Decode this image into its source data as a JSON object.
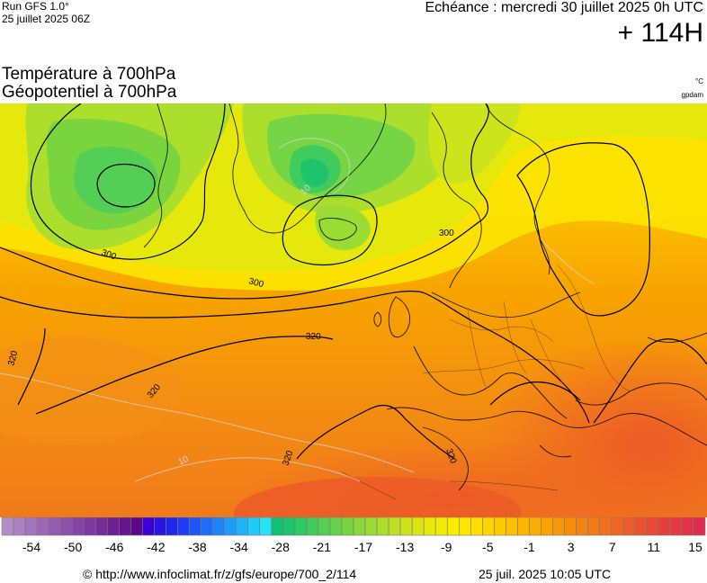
{
  "header": {
    "run_label": "Run GFS 1.0°",
    "run_date": "25 juillet 2025 06Z",
    "echeance": "Echéance : mercredi 30 juillet 2025 0h UTC",
    "lead_time": "+ 114H"
  },
  "titles": {
    "line1": "Température à 700hPa",
    "line2": "Géopotentiel à 700hPa",
    "unit_temp": "°C",
    "unit_geo": "gpdam"
  },
  "map": {
    "contour_labels": [
      {
        "id": "c300a",
        "text": "300"
      },
      {
        "id": "c300b",
        "text": "300"
      },
      {
        "id": "c300c",
        "text": "300"
      },
      {
        "id": "c320a",
        "text": "320"
      },
      {
        "id": "c320b",
        "text": "320"
      },
      {
        "id": "c320c",
        "text": "320"
      },
      {
        "id": "c320d",
        "text": "320"
      },
      {
        "id": "c320e",
        "text": "320"
      }
    ],
    "isotherm_labels": [
      {
        "id": "t10a",
        "text": "10"
      },
      {
        "id": "t10b",
        "text": "10"
      }
    ]
  },
  "legend": {
    "colors": [
      "#b48cc8",
      "#ac80c2",
      "#a474bc",
      "#9c68b6",
      "#945cb0",
      "#8c50aa",
      "#8444a4",
      "#7c389e",
      "#742c98",
      "#6c2092",
      "#64148c",
      "#5c0886",
      "#3a00d8",
      "#2a14e4",
      "#1e28ec",
      "#1e3cf4",
      "#1e54f8",
      "#1e6cfa",
      "#1e84fc",
      "#1e9cfc",
      "#1eb4fc",
      "#1ecbfc",
      "#28e2fa",
      "#10c074",
      "#1ec46c",
      "#2ec864",
      "#40cc5c",
      "#52cf54",
      "#64d24c",
      "#76d544",
      "#88d83c",
      "#9adb34",
      "#acde2c",
      "#bee024",
      "#cce41c",
      "#dae614",
      "#e6e80c",
      "#f0ea04",
      "#f8ec00",
      "#fce600",
      "#fcde00",
      "#fcd400",
      "#fcca00",
      "#fcc000",
      "#fcb600",
      "#fcac00",
      "#faa200",
      "#f89806",
      "#f68e0c",
      "#f48412",
      "#f27a18",
      "#f0701e",
      "#ee6624",
      "#ec5c2a",
      "#ea5230",
      "#e84836",
      "#e63e3c",
      "#e43842",
      "#e23248",
      "#e02c4e"
    ],
    "ticks": [
      "-54",
      "-50",
      "-46",
      "-42",
      "-38",
      "-34",
      "-28",
      "-21",
      "-17",
      "-13",
      "-9",
      "-5",
      "-1",
      "3",
      "7",
      "11",
      "15"
    ]
  },
  "footer": {
    "source": "© http://www.infoclimat.fr/z/gfs/europe/700_2/114",
    "generated": "25 juil. 2025 10:05 UTC"
  }
}
